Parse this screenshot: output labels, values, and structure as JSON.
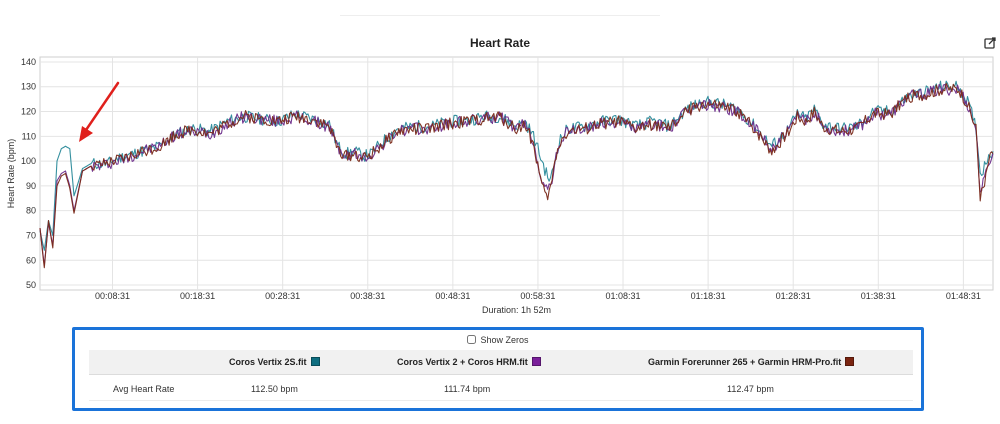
{
  "chart_data": {
    "type": "line",
    "title": "Heart Rate",
    "xlabel": "Duration: 1h 52m",
    "ylabel": "Heart Rate (bpm)",
    "ylim": [
      48,
      142
    ],
    "yticks": [
      50,
      60,
      70,
      80,
      90,
      100,
      110,
      120,
      130,
      140
    ],
    "xlim_minutes": [
      0,
      112
    ],
    "x_tick_labels": [
      "00:08:31",
      "00:18:31",
      "00:28:31",
      "00:38:31",
      "00:48:31",
      "00:58:31",
      "01:08:31",
      "01:18:31",
      "01:28:31",
      "01:38:31",
      "01:48:31"
    ],
    "x_tick_minutes": [
      8.52,
      18.52,
      28.52,
      38.52,
      48.52,
      58.52,
      68.52,
      78.52,
      88.52,
      98.52,
      108.52
    ],
    "grid": true,
    "legend": "none",
    "x_minutes": [
      0,
      0.5,
      1,
      1.5,
      2,
      2.5,
      3,
      3.5,
      4,
      5,
      6,
      7,
      8,
      9,
      10,
      12,
      14,
      16,
      18,
      20,
      22,
      24,
      26,
      28,
      30,
      32,
      34,
      35,
      36,
      37,
      38,
      39,
      40,
      42,
      44,
      46,
      48,
      50,
      52,
      54,
      56,
      57,
      58,
      59,
      59.5,
      60,
      60.5,
      61,
      62,
      64,
      66,
      68,
      70,
      72,
      74,
      76,
      78,
      80,
      82,
      84,
      86,
      88,
      89,
      90,
      91,
      92,
      94,
      96,
      98,
      100,
      102,
      104,
      106,
      108,
      109,
      110,
      110.5,
      111,
      111.5,
      112
    ],
    "series": [
      {
        "name": "Coros Vertix 2S.fit",
        "color": "#2a8a9a",
        "values": [
          72,
          64,
          76,
          70,
          100,
          105,
          106,
          105,
          86,
          97,
          99,
          99,
          99,
          101,
          102,
          104,
          106,
          111,
          113,
          112,
          116,
          118,
          117,
          116,
          119,
          117,
          115,
          106,
          103,
          104,
          102,
          103,
          107,
          113,
          114,
          114,
          116,
          116,
          118,
          118,
          114,
          116,
          110,
          100,
          95,
          92,
          100,
          108,
          113,
          114,
          116,
          117,
          114,
          116,
          114,
          121,
          124,
          123,
          121,
          114,
          106,
          113,
          119,
          117,
          121,
          115,
          113,
          114,
          120,
          120,
          126,
          128,
          130,
          130,
          124,
          114,
          95,
          98,
          103,
          104
        ]
      },
      {
        "name": "Coros Vertix 2 + Coros HRM.fit",
        "color": "#6d2c8a",
        "values": [
          73,
          58,
          75,
          66,
          92,
          95,
          96,
          90,
          80,
          96,
          98,
          98,
          99,
          100,
          101,
          104,
          106,
          111,
          112,
          111,
          115,
          118,
          117,
          116,
          118,
          116,
          114,
          105,
          102,
          103,
          101,
          103,
          106,
          112,
          113,
          113,
          115,
          116,
          117,
          118,
          113,
          115,
          108,
          92,
          88,
          90,
          99,
          107,
          112,
          113,
          115,
          116,
          113,
          115,
          113,
          120,
          123,
          122,
          120,
          113,
          105,
          112,
          118,
          116,
          120,
          114,
          112,
          113,
          119,
          119,
          126,
          127,
          129,
          129,
          123,
          113,
          88,
          92,
          100,
          103
        ]
      },
      {
        "name": "Garmin Forerunner 265 + Garmin HRM-Pro.fit",
        "color": "#7a2a1a",
        "values": [
          73,
          57,
          76,
          65,
          90,
          94,
          95,
          89,
          79,
          96,
          98,
          98,
          99,
          100,
          101,
          104,
          106,
          111,
          113,
          111,
          115,
          118,
          117,
          116,
          118,
          117,
          114,
          105,
          102,
          103,
          101,
          103,
          106,
          112,
          113,
          113,
          115,
          116,
          117,
          118,
          113,
          115,
          107,
          90,
          85,
          89,
          99,
          107,
          112,
          113,
          115,
          116,
          113,
          115,
          113,
          120,
          123,
          122,
          120,
          113,
          104,
          112,
          118,
          116,
          120,
          114,
          112,
          113,
          119,
          119,
          126,
          127,
          129,
          129,
          123,
          113,
          86,
          90,
          100,
          103
        ]
      }
    ]
  },
  "show_zeros": {
    "label": "Show Zeros",
    "checked": false
  },
  "stats_table": {
    "columns": [
      {
        "name": "Coros Vertix 2S.fit",
        "color": "#0e6e80"
      },
      {
        "name": "Coros Vertix 2 + Coros HRM.fit",
        "color": "#7a1f9a"
      },
      {
        "name": "Garmin Forerunner 265 + Garmin HRM-Pro.fit",
        "color": "#7a2410"
      }
    ],
    "rows": [
      {
        "label": "Avg Heart Rate",
        "values": [
          "112.50 bpm",
          "111.74 bpm",
          "112.47 bpm"
        ]
      }
    ]
  },
  "annotation": {
    "arrow_color": "#e0201c"
  }
}
